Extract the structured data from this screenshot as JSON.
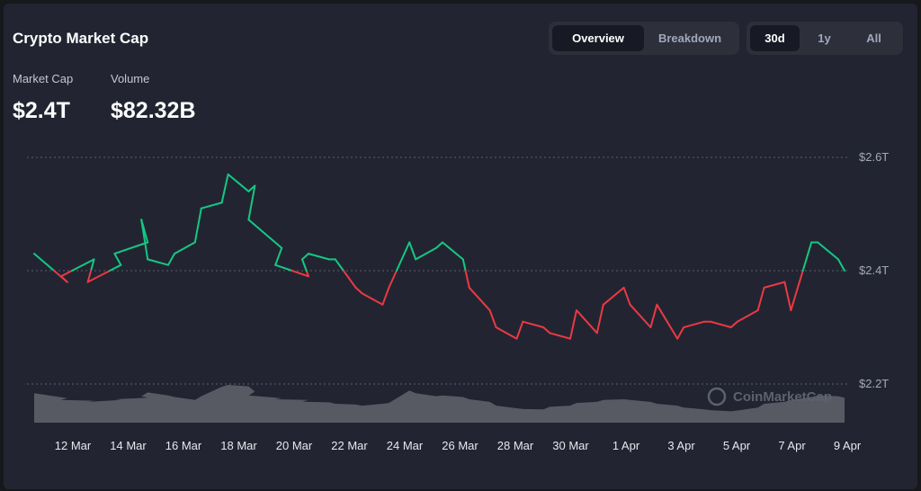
{
  "header": {
    "title": "Crypto Market Cap",
    "view_tabs": [
      {
        "label": "Overview",
        "active": true
      },
      {
        "label": "Breakdown",
        "active": false
      }
    ],
    "range_tabs": [
      {
        "label": "30d",
        "active": true
      },
      {
        "label": "1y",
        "active": false
      },
      {
        "label": "All",
        "active": false
      }
    ]
  },
  "stats": {
    "market_cap_label": "Market Cap",
    "market_cap_value": "$2.4T",
    "volume_label": "Volume",
    "volume_value": "$82.32B"
  },
  "watermark": "CoinMarketCap",
  "colors": {
    "up": "#16c784",
    "down": "#ea3943",
    "volume": "#62646c",
    "background": "#222531",
    "grid": "#5b5f6b"
  },
  "chart_data": {
    "type": "line",
    "ylim": [
      2.2,
      2.6
    ],
    "y_ticks": [
      {
        "value": 2.6,
        "label": "$2.6T"
      },
      {
        "value": 2.4,
        "label": "$2.4T"
      },
      {
        "value": 2.2,
        "label": "$2.2T"
      }
    ],
    "baseline": 2.4,
    "x_labels": [
      "12 Mar",
      "14 Mar",
      "16 Mar",
      "18 Mar",
      "20 Mar",
      "22 Mar",
      "24 Mar",
      "26 Mar",
      "28 Mar",
      "30 Mar",
      "1 Apr",
      "3 Apr",
      "5 Apr",
      "7 Apr",
      "9 Apr"
    ],
    "xlim": [
      "2024-03-10",
      "2024-04-09"
    ],
    "series": [
      {
        "x": [
          "2024-03-10",
          "2024-03-11",
          "2024-03-11",
          "2024-03-12",
          "2024-03-12",
          "2024-03-13",
          "2024-03-13",
          "2024-03-14",
          "2024-03-14",
          "2024-03-14",
          "2024-03-15",
          "2024-03-15",
          "2024-03-16",
          "2024-03-16",
          "2024-03-17",
          "2024-03-17",
          "2024-03-18",
          "2024-03-18",
          "2024-03-18",
          "2024-03-19",
          "2024-03-19",
          "2024-03-20",
          "2024-03-20",
          "2024-03-20",
          "2024-03-21",
          "2024-03-21",
          "2024-03-22",
          "2024-03-22",
          "2024-03-23",
          "2024-03-23",
          "2024-03-24",
          "2024-03-24",
          "2024-03-25",
          "2024-03-25",
          "2024-03-26",
          "2024-03-26",
          "2024-03-27",
          "2024-03-27",
          "2024-03-28",
          "2024-03-28",
          "2024-03-29",
          "2024-03-29",
          "2024-03-30",
          "2024-03-30",
          "2024-03-31",
          "2024-03-31",
          "2024-04-01",
          "2024-04-01",
          "2024-04-02",
          "2024-04-02",
          "2024-04-03",
          "2024-04-03",
          "2024-04-04",
          "2024-04-04",
          "2024-04-05",
          "2024-04-05",
          "2024-04-06",
          "2024-04-06",
          "2024-04-07",
          "2024-04-07",
          "2024-04-08",
          "2024-04-08",
          "2024-04-09",
          "2024-04-09"
        ],
        "values": [
          2.43,
          2.38,
          2.39,
          2.42,
          2.38,
          2.41,
          2.43,
          2.45,
          2.49,
          2.42,
          2.41,
          2.43,
          2.45,
          2.51,
          2.52,
          2.57,
          2.54,
          2.55,
          2.49,
          2.44,
          2.41,
          2.39,
          2.42,
          2.43,
          2.42,
          2.42,
          2.37,
          2.36,
          2.34,
          2.37,
          2.45,
          2.42,
          2.44,
          2.45,
          2.42,
          2.37,
          2.33,
          2.3,
          2.28,
          2.31,
          2.3,
          2.29,
          2.28,
          2.33,
          2.29,
          2.34,
          2.37,
          2.34,
          2.3,
          2.34,
          2.28,
          2.3,
          2.31,
          2.31,
          2.3,
          2.31,
          2.33,
          2.37,
          2.38,
          2.33,
          2.45,
          2.45,
          2.42,
          2.4
        ],
        "volume": [
          0.78,
          0.65,
          0.6,
          0.58,
          0.55,
          0.6,
          0.62,
          0.66,
          0.7,
          0.8,
          0.72,
          0.68,
          0.6,
          0.7,
          0.95,
          1.0,
          0.96,
          0.82,
          0.72,
          0.65,
          0.62,
          0.6,
          0.56,
          0.55,
          0.54,
          0.5,
          0.48,
          0.45,
          0.5,
          0.52,
          0.85,
          0.78,
          0.7,
          0.72,
          0.68,
          0.62,
          0.55,
          0.45,
          0.38,
          0.36,
          0.35,
          0.42,
          0.45,
          0.52,
          0.55,
          0.6,
          0.62,
          0.6,
          0.55,
          0.5,
          0.45,
          0.4,
          0.35,
          0.33,
          0.3,
          0.32,
          0.4,
          0.5,
          0.55,
          0.6,
          0.68,
          0.72,
          0.7,
          0.66
        ]
      }
    ]
  }
}
